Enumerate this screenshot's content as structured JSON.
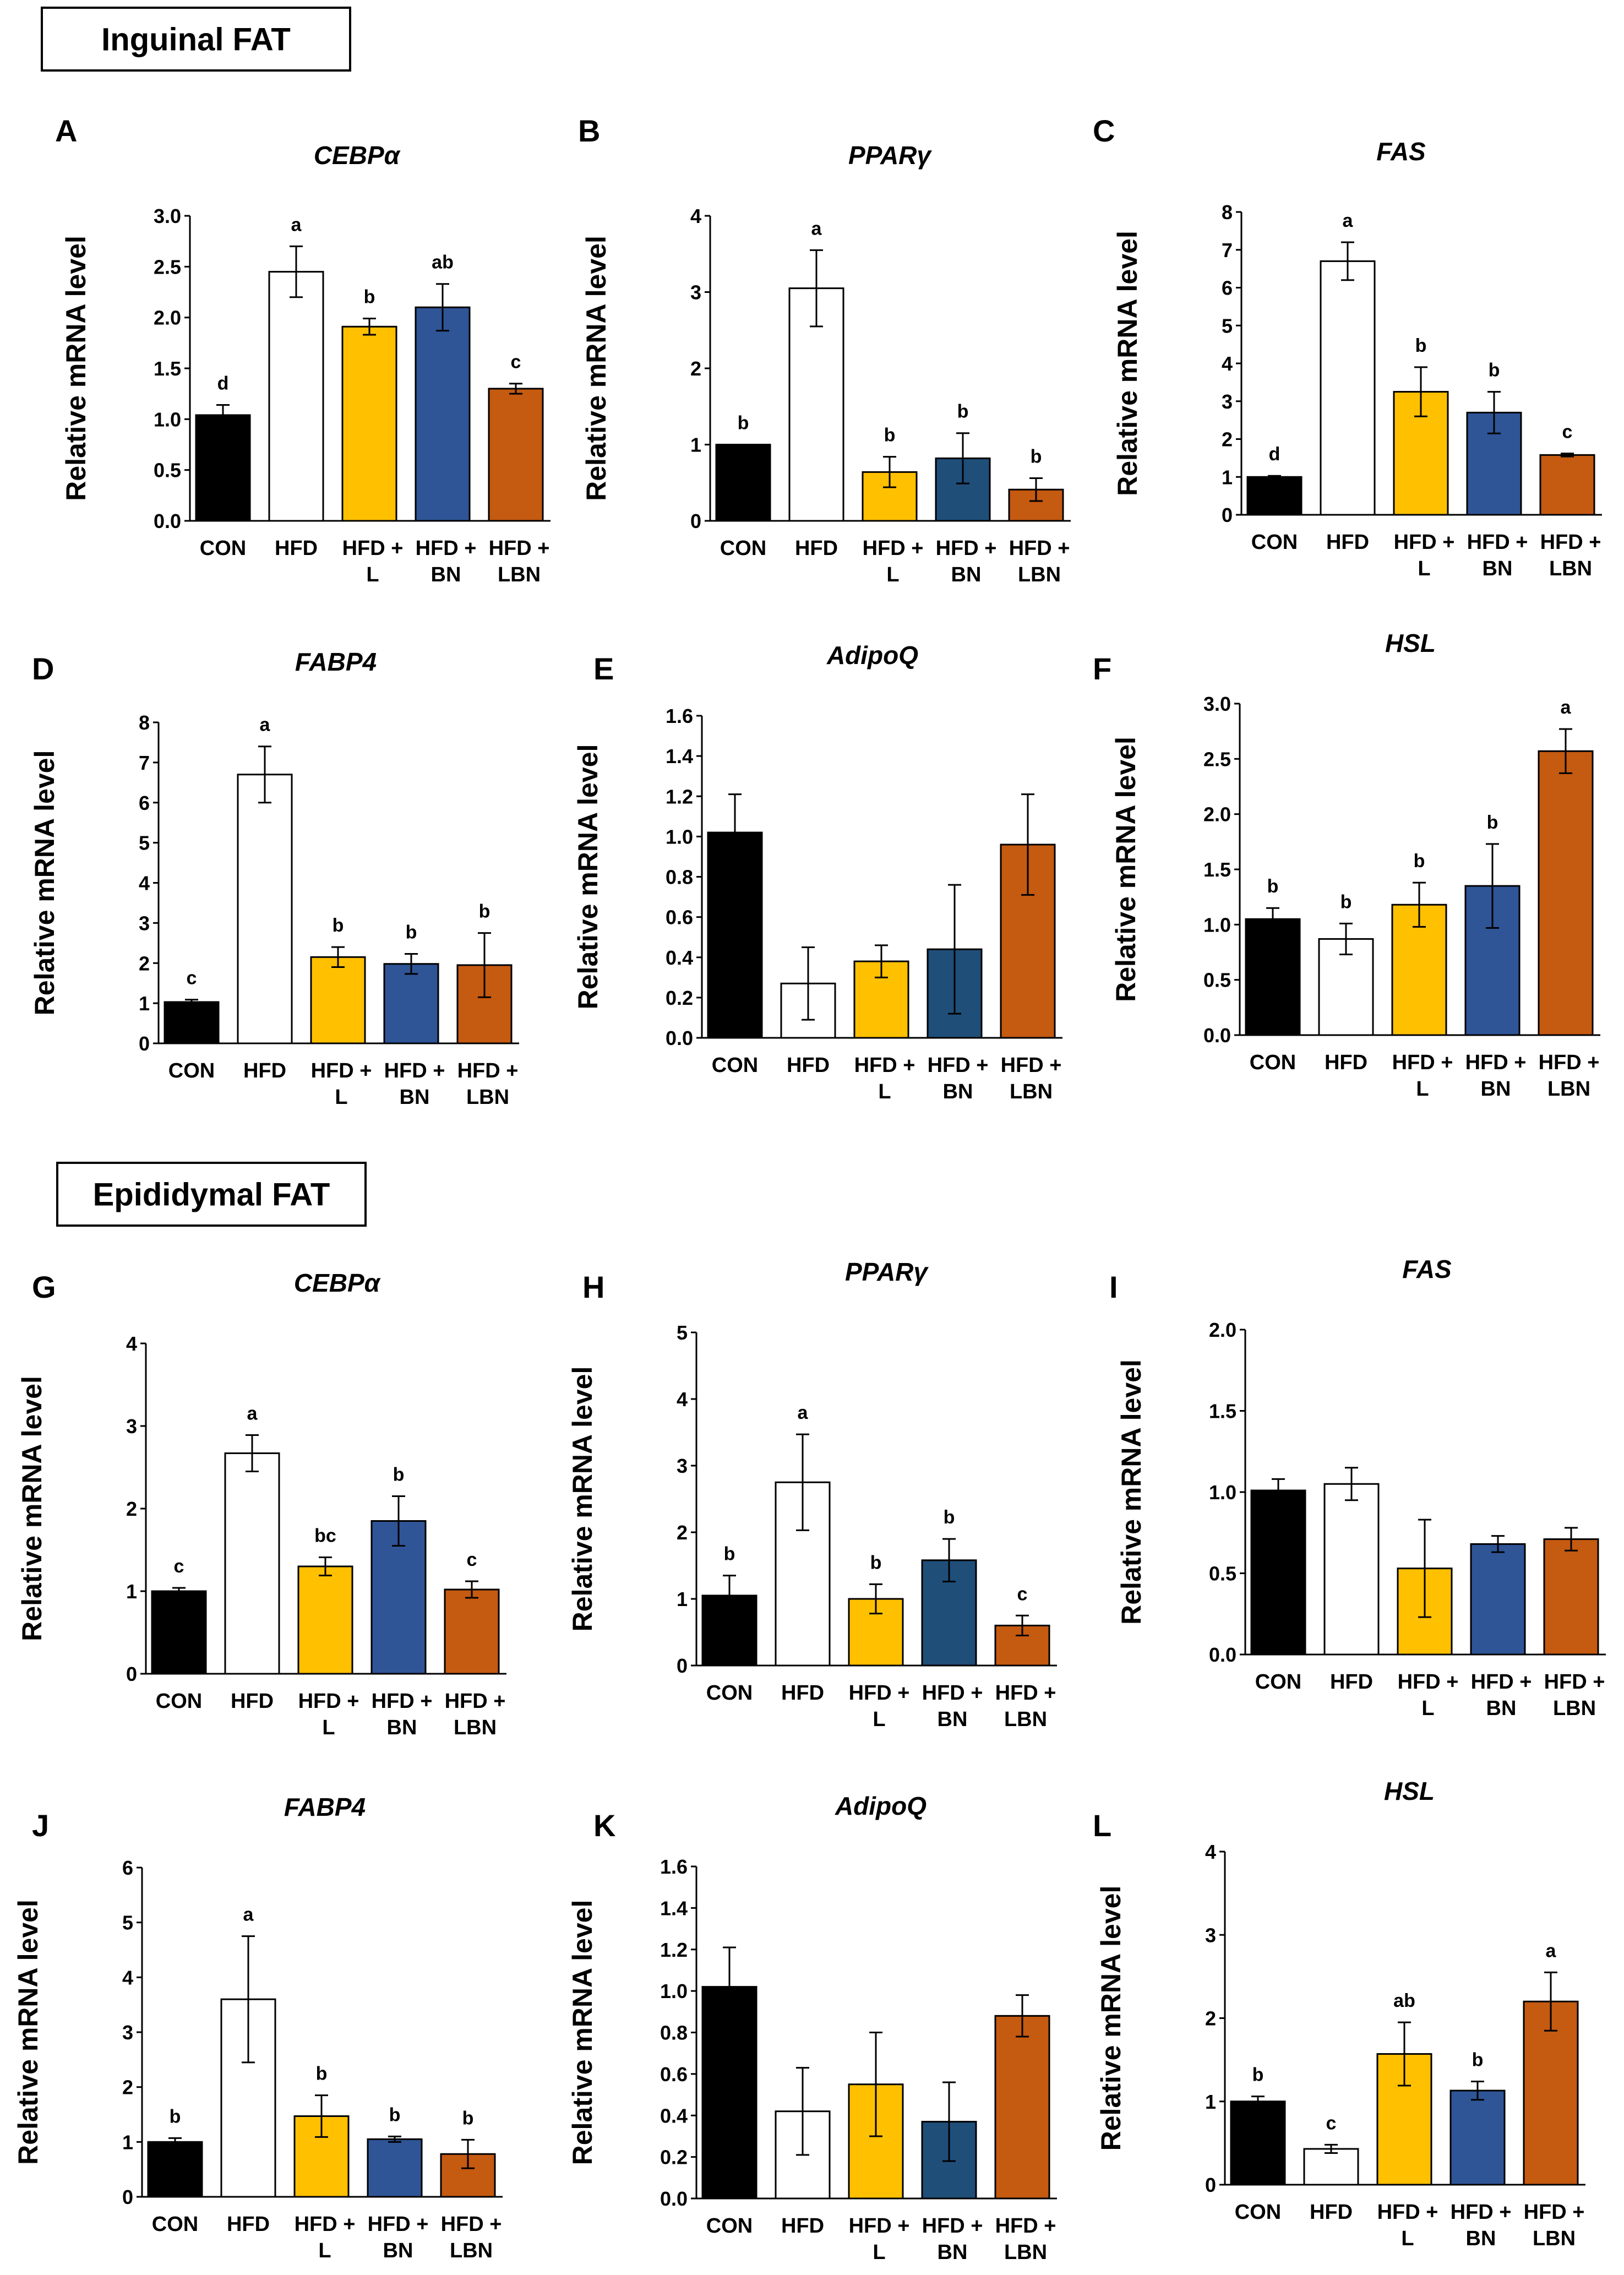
{
  "sections": [
    {
      "label": "Inguinal FAT"
    },
    {
      "label": "Epididymal FAT"
    }
  ],
  "colors": {
    "CON": "#000000",
    "HFD": "#ffffff",
    "HFD + L": "#ffc000",
    "HFD + BN": "#2f5597",
    "HFD + BN dark": "#1f4e79",
    "HFD + LBN": "#c55a11",
    "axis": "#000000"
  },
  "chart_data": [
    {
      "panel": "A",
      "title": "CEBPα",
      "type": "bar",
      "ylabel": "Relative mRNA level",
      "categories": [
        "CON",
        "HFD",
        "HFD + L",
        "HFD + BN",
        "HFD + LBN"
      ],
      "values": [
        1.04,
        2.45,
        1.91,
        2.1,
        1.3
      ],
      "errors": [
        0.1,
        0.25,
        0.08,
        0.23,
        0.05
      ],
      "letters": [
        "d",
        "a",
        "b",
        "ab",
        "c"
      ],
      "ylim": [
        0,
        3
      ],
      "ytick_labels": [
        "0.0",
        "0.5",
        "1.0",
        "1.5",
        "2.0",
        "2.5",
        "3.0"
      ]
    },
    {
      "panel": "B",
      "title": "PPARγ",
      "type": "bar",
      "ylabel": "Relative mRNA level",
      "categories": [
        "CON",
        "HFD",
        "HFD + L",
        "HFD + BN",
        "HFD + LBN"
      ],
      "values": [
        1.0,
        3.05,
        0.64,
        0.82,
        0.41
      ],
      "errors": [
        0.0,
        0.5,
        0.2,
        0.33,
        0.15
      ],
      "letters": [
        "b",
        "a",
        "b",
        "b",
        "b"
      ],
      "ylim": [
        0,
        4
      ],
      "ytick_labels": [
        "0",
        "1",
        "2",
        "3",
        "4"
      ]
    },
    {
      "panel": "C",
      "title": "FAS",
      "type": "bar",
      "ylabel": "Relative mRNA level",
      "categories": [
        "CON",
        "HFD",
        "HFD + L",
        "HFD + BN",
        "HFD + LBN"
      ],
      "values": [
        1.0,
        6.7,
        3.25,
        2.7,
        1.58
      ],
      "errors": [
        0.03,
        0.5,
        0.65,
        0.55,
        0.04
      ],
      "letters": [
        "d",
        "a",
        "b",
        "b",
        "c"
      ],
      "ylim": [
        0,
        8
      ],
      "ytick_labels": [
        "0",
        "1",
        "2",
        "3",
        "4",
        "5",
        "6",
        "7",
        "8"
      ]
    },
    {
      "panel": "D",
      "title": "FABP4",
      "type": "bar",
      "ylabel": "Relative mRNA level",
      "categories": [
        "CON",
        "HFD",
        "HFD + L",
        "HFD + BN",
        "HFD + LBN"
      ],
      "values": [
        1.03,
        6.7,
        2.15,
        1.98,
        1.95
      ],
      "errors": [
        0.06,
        0.7,
        0.25,
        0.25,
        0.8
      ],
      "letters": [
        "c",
        "a",
        "b",
        "b",
        "b"
      ],
      "ylim": [
        0,
        8
      ],
      "ytick_labels": [
        "0",
        "1",
        "2",
        "3",
        "4",
        "5",
        "6",
        "7",
        "8"
      ]
    },
    {
      "panel": "E",
      "title": "AdipoQ",
      "type": "bar",
      "ylabel": "Relative mRNA level",
      "categories": [
        "CON",
        "HFD",
        "HFD + L",
        "HFD + BN",
        "HFD + LBN"
      ],
      "values": [
        1.02,
        0.27,
        0.38,
        0.44,
        0.96
      ],
      "errors": [
        0.19,
        0.18,
        0.08,
        0.32,
        0.25
      ],
      "letters": [
        "",
        "",
        "",
        "",
        ""
      ],
      "ylim": [
        0,
        1.6
      ],
      "ytick_labels": [
        "0.0",
        "0.2",
        "0.4",
        "0.6",
        "0.8",
        "1.0",
        "1.2",
        "1.4",
        "1.6"
      ]
    },
    {
      "panel": "F",
      "title": "HSL",
      "type": "bar",
      "ylabel": "Relative mRNA level",
      "categories": [
        "CON",
        "HFD",
        "HFD + L",
        "HFD + BN",
        "HFD + LBN"
      ],
      "values": [
        1.05,
        0.87,
        1.18,
        1.35,
        2.57
      ],
      "errors": [
        0.1,
        0.14,
        0.2,
        0.38,
        0.2
      ],
      "letters": [
        "b",
        "b",
        "b",
        "b",
        "a"
      ],
      "ylim": [
        0,
        3
      ],
      "ytick_labels": [
        "0.0",
        "0.5",
        "1.0",
        "1.5",
        "2.0",
        "2.5",
        "3.0"
      ]
    },
    {
      "panel": "G",
      "title": "CEBPα",
      "type": "bar",
      "ylabel": "Relative mRNA level",
      "categories": [
        "CON",
        "HFD",
        "HFD + L",
        "HFD + BN",
        "HFD + LBN"
      ],
      "values": [
        1.0,
        2.67,
        1.3,
        1.85,
        1.02
      ],
      "errors": [
        0.04,
        0.22,
        0.11,
        0.3,
        0.1
      ],
      "letters": [
        "c",
        "a",
        "bc",
        "b",
        "c"
      ],
      "ylim": [
        0,
        4
      ],
      "ytick_labels": [
        "0",
        "1",
        "2",
        "3",
        "4"
      ]
    },
    {
      "panel": "H",
      "title": "PPARγ",
      "type": "bar",
      "ylabel": "Relative mRNA level",
      "categories": [
        "CON",
        "HFD",
        "HFD + L",
        "HFD + BN",
        "HFD + LBN"
      ],
      "values": [
        1.05,
        2.75,
        1.0,
        1.58,
        0.6
      ],
      "errors": [
        0.3,
        0.72,
        0.22,
        0.32,
        0.15
      ],
      "letters": [
        "b",
        "a",
        "b",
        "b",
        "c"
      ],
      "ylim": [
        0,
        5
      ],
      "ytick_labels": [
        "0",
        "1",
        "2",
        "3",
        "4",
        "5"
      ]
    },
    {
      "panel": "I",
      "title": "FAS",
      "type": "bar",
      "ylabel": "Relative mRNA level",
      "categories": [
        "CON",
        "HFD",
        "HFD + L",
        "HFD + BN",
        "HFD + LBN"
      ],
      "values": [
        1.01,
        1.05,
        0.53,
        0.68,
        0.71
      ],
      "errors": [
        0.07,
        0.1,
        0.3,
        0.05,
        0.07
      ],
      "letters": [
        "",
        "",
        "",
        "",
        ""
      ],
      "ylim": [
        0,
        2
      ],
      "ytick_labels": [
        "0.0",
        "0.5",
        "1.0",
        "1.5",
        "2.0"
      ]
    },
    {
      "panel": "J",
      "title": "FABP4",
      "type": "bar",
      "ylabel": "Relative mRNA level",
      "categories": [
        "CON",
        "HFD",
        "HFD + L",
        "HFD + BN",
        "HFD + LBN"
      ],
      "values": [
        1.0,
        3.6,
        1.47,
        1.05,
        0.78
      ],
      "errors": [
        0.07,
        1.15,
        0.38,
        0.05,
        0.26
      ],
      "letters": [
        "b",
        "a",
        "b",
        "b",
        "b"
      ],
      "ylim": [
        0,
        6
      ],
      "ytick_labels": [
        "0",
        "1",
        "2",
        "3",
        "4",
        "5",
        "6"
      ]
    },
    {
      "panel": "K",
      "title": "AdipoQ",
      "type": "bar",
      "ylabel": "Relative mRNA level",
      "categories": [
        "CON",
        "HFD",
        "HFD + L",
        "HFD + BN",
        "HFD + LBN"
      ],
      "values": [
        1.02,
        0.42,
        0.55,
        0.37,
        0.88
      ],
      "errors": [
        0.19,
        0.21,
        0.25,
        0.19,
        0.1
      ],
      "letters": [
        "",
        "",
        "",
        "",
        ""
      ],
      "ylim": [
        0,
        1.6
      ],
      "ytick_labels": [
        "0.0",
        "0.2",
        "0.4",
        "0.6",
        "0.8",
        "1.0",
        "1.2",
        "1.4",
        "1.6"
      ]
    },
    {
      "panel": "L",
      "title": "HSL",
      "type": "bar",
      "ylabel": "Relative mRNA level",
      "categories": [
        "CON",
        "HFD",
        "HFD + L",
        "HFD + BN",
        "HFD + LBN"
      ],
      "values": [
        1.0,
        0.43,
        1.57,
        1.13,
        2.2
      ],
      "errors": [
        0.06,
        0.05,
        0.38,
        0.11,
        0.35
      ],
      "letters": [
        "b",
        "c",
        "ab",
        "b",
        "a"
      ],
      "ylim": [
        0,
        4
      ],
      "ytick_labels": [
        "0",
        "1",
        "2",
        "3",
        "4"
      ]
    }
  ]
}
